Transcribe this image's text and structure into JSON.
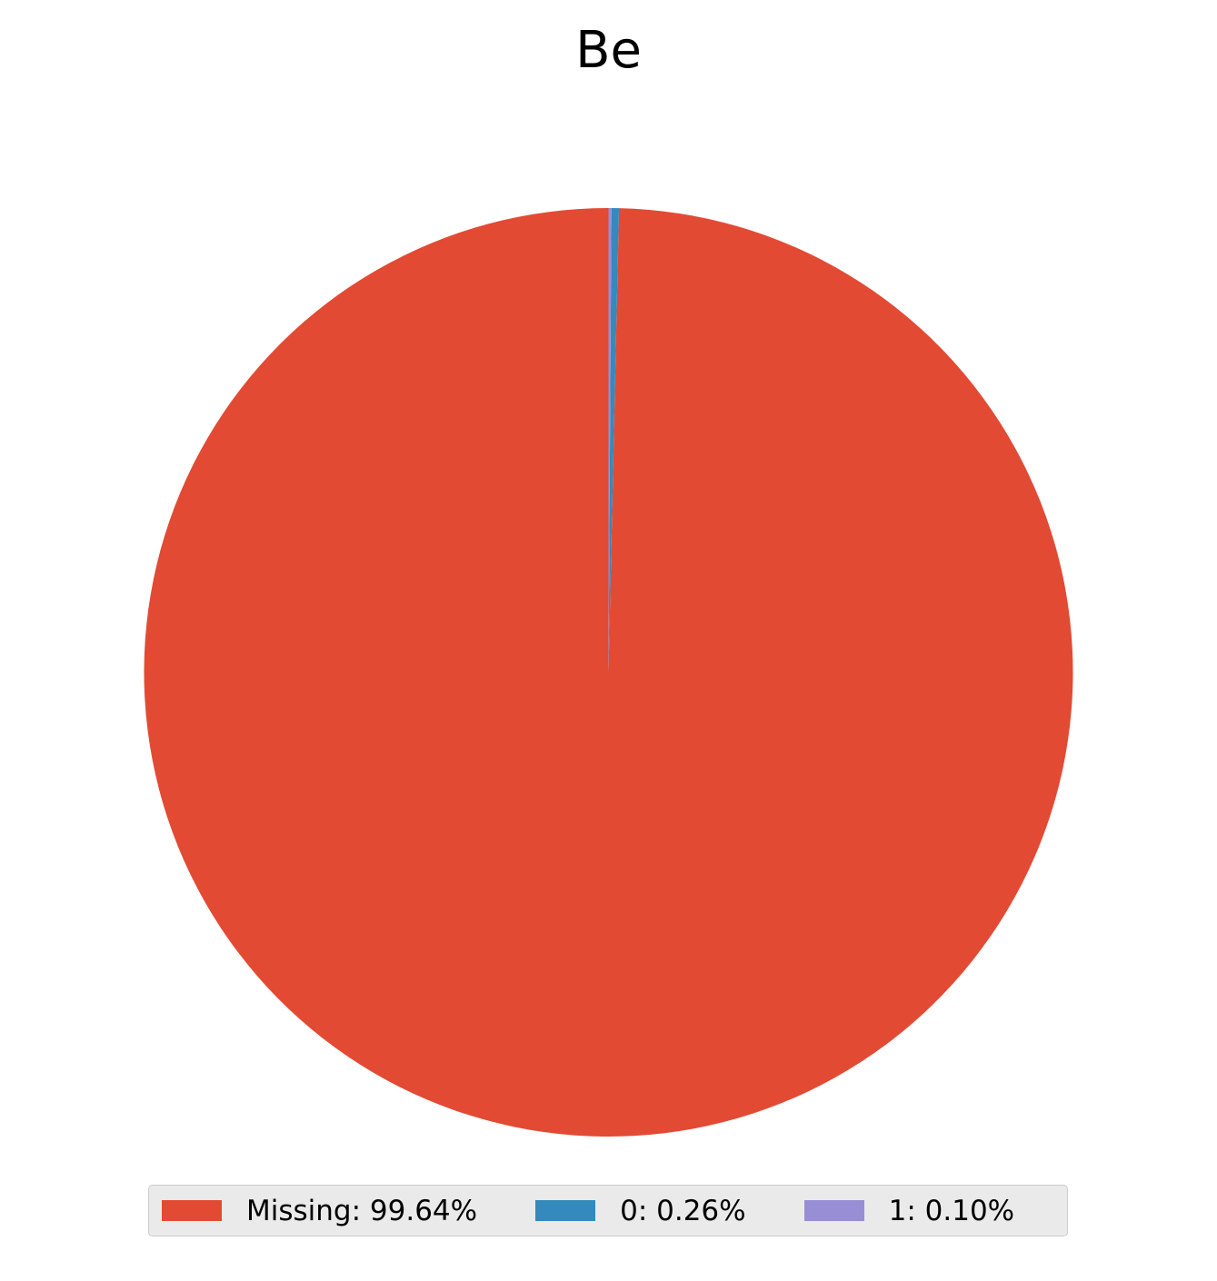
{
  "chart_data": {
    "type": "pie",
    "title": "Be",
    "start_angle": 90,
    "direction": "counterclockwise",
    "slices": [
      {
        "label": "Missing",
        "value": 99.64,
        "legend_text": "Missing: 99.64%",
        "color": "#E24A33"
      },
      {
        "label": "0",
        "value": 0.26,
        "legend_text": "0: 0.26%",
        "color": "#348ABD"
      },
      {
        "label": "1",
        "value": 0.1,
        "legend_text": "1: 0.10%",
        "color": "#988ED5"
      }
    ],
    "legend": {
      "placement": "bottom-center",
      "columns": 3,
      "background": "#EAEAEA"
    }
  }
}
